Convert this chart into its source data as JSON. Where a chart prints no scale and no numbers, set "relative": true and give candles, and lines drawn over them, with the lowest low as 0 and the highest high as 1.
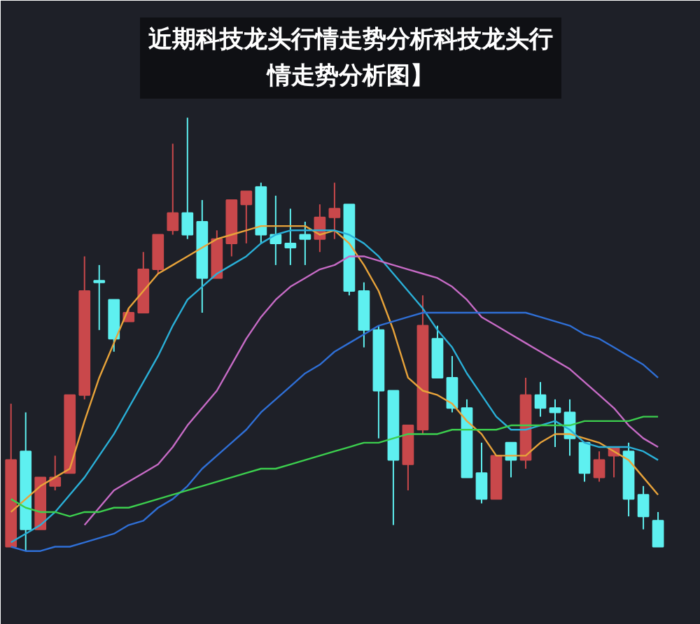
{
  "chart_data": {
    "type": "candlestick",
    "title": "近期科技龙头行情走势分析科技龙头行情走势分析图】",
    "relative": true,
    "tick_labels": false,
    "categories": [
      null,
      null,
      null,
      null,
      null,
      null,
      null,
      null,
      null,
      null,
      null,
      null,
      null,
      null,
      null,
      null,
      null,
      null,
      null,
      null,
      null,
      null,
      null,
      null,
      null,
      null,
      null,
      null,
      null,
      null,
      null,
      null,
      null,
      null,
      null,
      null,
      null,
      null,
      null,
      null,
      null,
      null,
      null,
      null,
      null
    ],
    "ohlc": [
      [
        0.01,
        0.34,
        0.01,
        0.21
      ],
      [
        0.23,
        0.32,
        0,
        0.05
      ],
      [
        0.05,
        0.17,
        0.05,
        0.17
      ],
      [
        0.15,
        0.22,
        0.14,
        0.17
      ],
      [
        0.18,
        0.36,
        0.18,
        0.36
      ],
      [
        0.36,
        0.68,
        0.35,
        0.6
      ],
      [
        0.62,
        0.66,
        0.51,
        0.62
      ],
      [
        0.58,
        0.58,
        0.46,
        0.49
      ],
      [
        0.53,
        0.56,
        0.53,
        0.55
      ],
      [
        0.55,
        0.69,
        0.55,
        0.65
      ],
      [
        0.65,
        0.73,
        0.64,
        0.73
      ],
      [
        0.74,
        0.94,
        0.73,
        0.78
      ],
      [
        0.78,
        1,
        0.72,
        0.73
      ],
      [
        0.76,
        0.81,
        0.55,
        0.63
      ],
      [
        0.63,
        0.74,
        0.63,
        0.72
      ],
      [
        0.71,
        0.81,
        0.68,
        0.81
      ],
      [
        0.8,
        0.83,
        0.71,
        0.83
      ],
      [
        0.84,
        0.85,
        0.71,
        0.73
      ],
      [
        0.73,
        0.82,
        0.66,
        0.71
      ],
      [
        0.71,
        0.79,
        0.66,
        0.7
      ],
      [
        0.73,
        0.76,
        0.66,
        0.72
      ],
      [
        0.72,
        0.8,
        0.69,
        0.77
      ],
      [
        0.77,
        0.85,
        0.72,
        0.79
      ],
      [
        0.8,
        0.8,
        0.59,
        0.6
      ],
      [
        0.6,
        0.62,
        0.47,
        0.51
      ],
      [
        0.51,
        0.52,
        0.26,
        0.37
      ],
      [
        0.37,
        0.37,
        0.06,
        0.21
      ],
      [
        0.2,
        0.29,
        0.14,
        0.29
      ],
      [
        0.28,
        0.59,
        0.27,
        0.52
      ],
      [
        0.49,
        0.52,
        0.4,
        0.4
      ],
      [
        0.4,
        0.45,
        0.32,
        0.33
      ],
      [
        0.33,
        0.35,
        0.17,
        0.17
      ],
      [
        0.18,
        0.25,
        0.11,
        0.12
      ],
      [
        0.12,
        0.22,
        0.12,
        0.22
      ],
      [
        0.25,
        0.25,
        0.17,
        0.21
      ],
      [
        0.21,
        0.4,
        0.19,
        0.36
      ],
      [
        0.36,
        0.39,
        0.31,
        0.33
      ],
      [
        0.33,
        0.35,
        0.24,
        0.32
      ],
      [
        0.32,
        0.35,
        0.22,
        0.26
      ],
      [
        0.25,
        0.25,
        0.16,
        0.18
      ],
      [
        0.17,
        0.23,
        0.16,
        0.21
      ],
      [
        0.22,
        0.24,
        0.17,
        0.24
      ],
      [
        0.23,
        0.25,
        0.08,
        0.12
      ],
      [
        0.13,
        0.15,
        0.05,
        0.08
      ],
      [
        0.07,
        0.09,
        0.01,
        0.01
      ]
    ],
    "colors": [
      "#c9484b",
      "#5ef0f0",
      "#c9484b",
      "#c9484b",
      "#c9484b",
      "#c9484b",
      "#5ef0f0",
      "#5ef0f0",
      "#c9484b",
      "#c9484b",
      "#c9484b",
      "#c9484b",
      "#5ef0f0",
      "#5ef0f0",
      "#c9484b",
      "#c9484b",
      "#c9484b",
      "#5ef0f0",
      "#5ef0f0",
      "#5ef0f0",
      "#5ef0f0",
      "#c9484b",
      "#c9484b",
      "#5ef0f0",
      "#5ef0f0",
      "#5ef0f0",
      "#5ef0f0",
      "#c9484b",
      "#c9484b",
      "#5ef0f0",
      "#5ef0f0",
      "#5ef0f0",
      "#5ef0f0",
      "#c9484b",
      "#5ef0f0",
      "#c9484b",
      "#5ef0f0",
      "#5ef0f0",
      "#5ef0f0",
      "#5ef0f0",
      "#c9484b",
      "#c9484b",
      "#5ef0f0",
      "#5ef0f0",
      "#5ef0f0"
    ],
    "series": [
      {
        "type": "line",
        "color": "#e8a33a",
        "values": [
          0.09,
          0.12,
          0.15,
          0.17,
          0.19,
          0.3,
          0.4,
          0.48,
          0.56,
          0.6,
          0.64,
          0.66,
          0.68,
          0.7,
          0.72,
          0.73,
          0.74,
          0.75,
          0.75,
          0.75,
          0.75,
          0.73,
          0.74,
          0.71,
          0.66,
          0.6,
          0.51,
          0.4,
          0.37,
          0.36,
          0.34,
          0.3,
          0.27,
          0.22,
          0.22,
          0.22,
          0.25,
          0.27,
          0.27,
          0.26,
          0.25,
          0.23,
          0.21,
          0.17,
          0.13
        ]
      },
      {
        "type": "line",
        "color": "#2ab0d8",
        "values": [
          0.02,
          0.04,
          0.06,
          0.09,
          0.13,
          0.17,
          0.22,
          0.27,
          0.33,
          0.39,
          0.45,
          0.52,
          0.58,
          0.61,
          0.64,
          0.66,
          0.68,
          0.71,
          0.73,
          0.74,
          0.74,
          0.74,
          0.74,
          0.73,
          0.71,
          0.68,
          0.64,
          0.6,
          0.56,
          0.51,
          0.47,
          0.41,
          0.36,
          0.31,
          0.28,
          0.28,
          0.29,
          0.3,
          0.28,
          0.25,
          0.24,
          0.24,
          0.24,
          0.23,
          0.21
        ]
      },
      {
        "type": "line",
        "color": "#c76bc6",
        "values": [
          null,
          null,
          null,
          null,
          null,
          0.06,
          0.1,
          0.14,
          0.16,
          0.18,
          0.2,
          0.24,
          0.29,
          0.33,
          0.37,
          0.43,
          0.49,
          0.54,
          0.58,
          0.61,
          0.63,
          0.65,
          0.66,
          0.68,
          0.68,
          0.67,
          0.66,
          0.65,
          0.64,
          0.63,
          0.61,
          0.58,
          0.54,
          0.52,
          0.5,
          0.48,
          0.46,
          0.44,
          0.42,
          0.39,
          0.36,
          0.33,
          0.29,
          0.26,
          0.24
        ]
      },
      {
        "type": "line",
        "color": "#2f6fd6",
        "values": [
          0.01,
          0.0,
          0.0,
          0.01,
          0.01,
          0.02,
          0.03,
          0.04,
          0.06,
          0.07,
          0.1,
          0.12,
          0.15,
          0.19,
          0.22,
          0.25,
          0.28,
          0.32,
          0.35,
          0.38,
          0.41,
          0.43,
          0.46,
          0.48,
          0.5,
          0.52,
          0.53,
          0.54,
          0.55,
          0.55,
          0.55,
          0.55,
          0.55,
          0.55,
          0.55,
          0.55,
          0.54,
          0.53,
          0.52,
          0.5,
          0.49,
          0.47,
          0.45,
          0.43,
          0.4
        ]
      },
      {
        "type": "line",
        "color": "#3ccf4e",
        "values": [
          0.12,
          0.1,
          0.09,
          0.09,
          0.08,
          0.09,
          0.09,
          0.1,
          0.1,
          0.11,
          0.12,
          0.13,
          0.14,
          0.15,
          0.16,
          0.17,
          0.18,
          0.19,
          0.19,
          0.2,
          0.21,
          0.22,
          0.23,
          0.24,
          0.25,
          0.25,
          0.26,
          0.27,
          0.27,
          0.27,
          0.28,
          0.28,
          0.28,
          0.28,
          0.29,
          0.29,
          0.29,
          0.29,
          0.29,
          0.3,
          0.3,
          0.3,
          0.3,
          0.31,
          0.31
        ]
      }
    ]
  }
}
